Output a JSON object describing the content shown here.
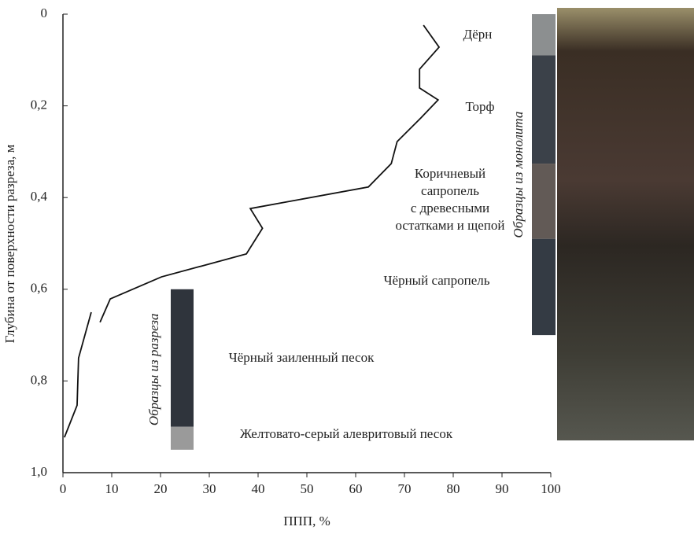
{
  "chart_data": {
    "type": "line",
    "x_label": "ППП, %",
    "y_label": "Глубина от поверхности разреза, м",
    "xlim": [
      0,
      100
    ],
    "ylim": [
      0,
      1.0
    ],
    "y_inverted": true,
    "xticks": [
      0,
      10,
      20,
      30,
      40,
      50,
      60,
      70,
      80,
      90,
      100
    ],
    "yticks": [
      0,
      {
        "value": 0.2,
        "label": "0,2"
      },
      {
        "value": 0.4,
        "label": "0,4"
      },
      {
        "value": 0.6,
        "label": "0,6"
      },
      {
        "value": 0.8,
        "label": "0,8"
      },
      {
        "value": 1.0,
        "label": "1,0"
      }
    ],
    "color": "#111111",
    "x": [
      73.9,
      77.1,
      73.1,
      73.1,
      76.9,
      73.4,
      68.5,
      67.3,
      62.6,
      38.4,
      40.9,
      37.6,
      20.2,
      9.7,
      7.6,
      null,
      5.8,
      3.2,
      2.9,
      0.3
    ],
    "y": [
      0.024,
      0.072,
      0.12,
      0.161,
      0.187,
      0.226,
      0.278,
      0.326,
      0.377,
      0.424,
      0.467,
      0.523,
      0.573,
      0.621,
      0.672,
      null,
      0.65,
      0.75,
      0.853,
      0.923
    ],
    "columns": [
      {
        "label": "Образцы из монолита",
        "segments": [
          {
            "from": 0,
            "to": 0.09,
            "color": "#8c8f90"
          },
          {
            "from": 0.09,
            "to": 0.326,
            "color": "#3b4149"
          },
          {
            "from": 0.326,
            "to": 0.49,
            "color": "#625a56"
          },
          {
            "from": 0.49,
            "to": 0.7,
            "color": "#343b44"
          }
        ]
      },
      {
        "label": "Образцы из разреза",
        "segments": [
          {
            "from": 0.6,
            "to": 0.9,
            "color": "#2f343c"
          },
          {
            "from": 0.9,
            "to": 0.95,
            "color": "#9a9a9a"
          }
        ]
      }
    ],
    "layers": [
      {
        "lines": [
          "Дёрн"
        ]
      },
      {
        "lines": [
          "Торф"
        ]
      },
      {
        "lines": [
          "Коричневый",
          "сапропель",
          "с древесными",
          "остатками и щепой"
        ]
      },
      {
        "lines": [
          "Чёрный сапропель"
        ]
      },
      {
        "lines": [
          "Чёрный заиленный песок"
        ]
      },
      {
        "lines": [
          "Желтовато-серый алевритовый песок"
        ]
      }
    ]
  }
}
